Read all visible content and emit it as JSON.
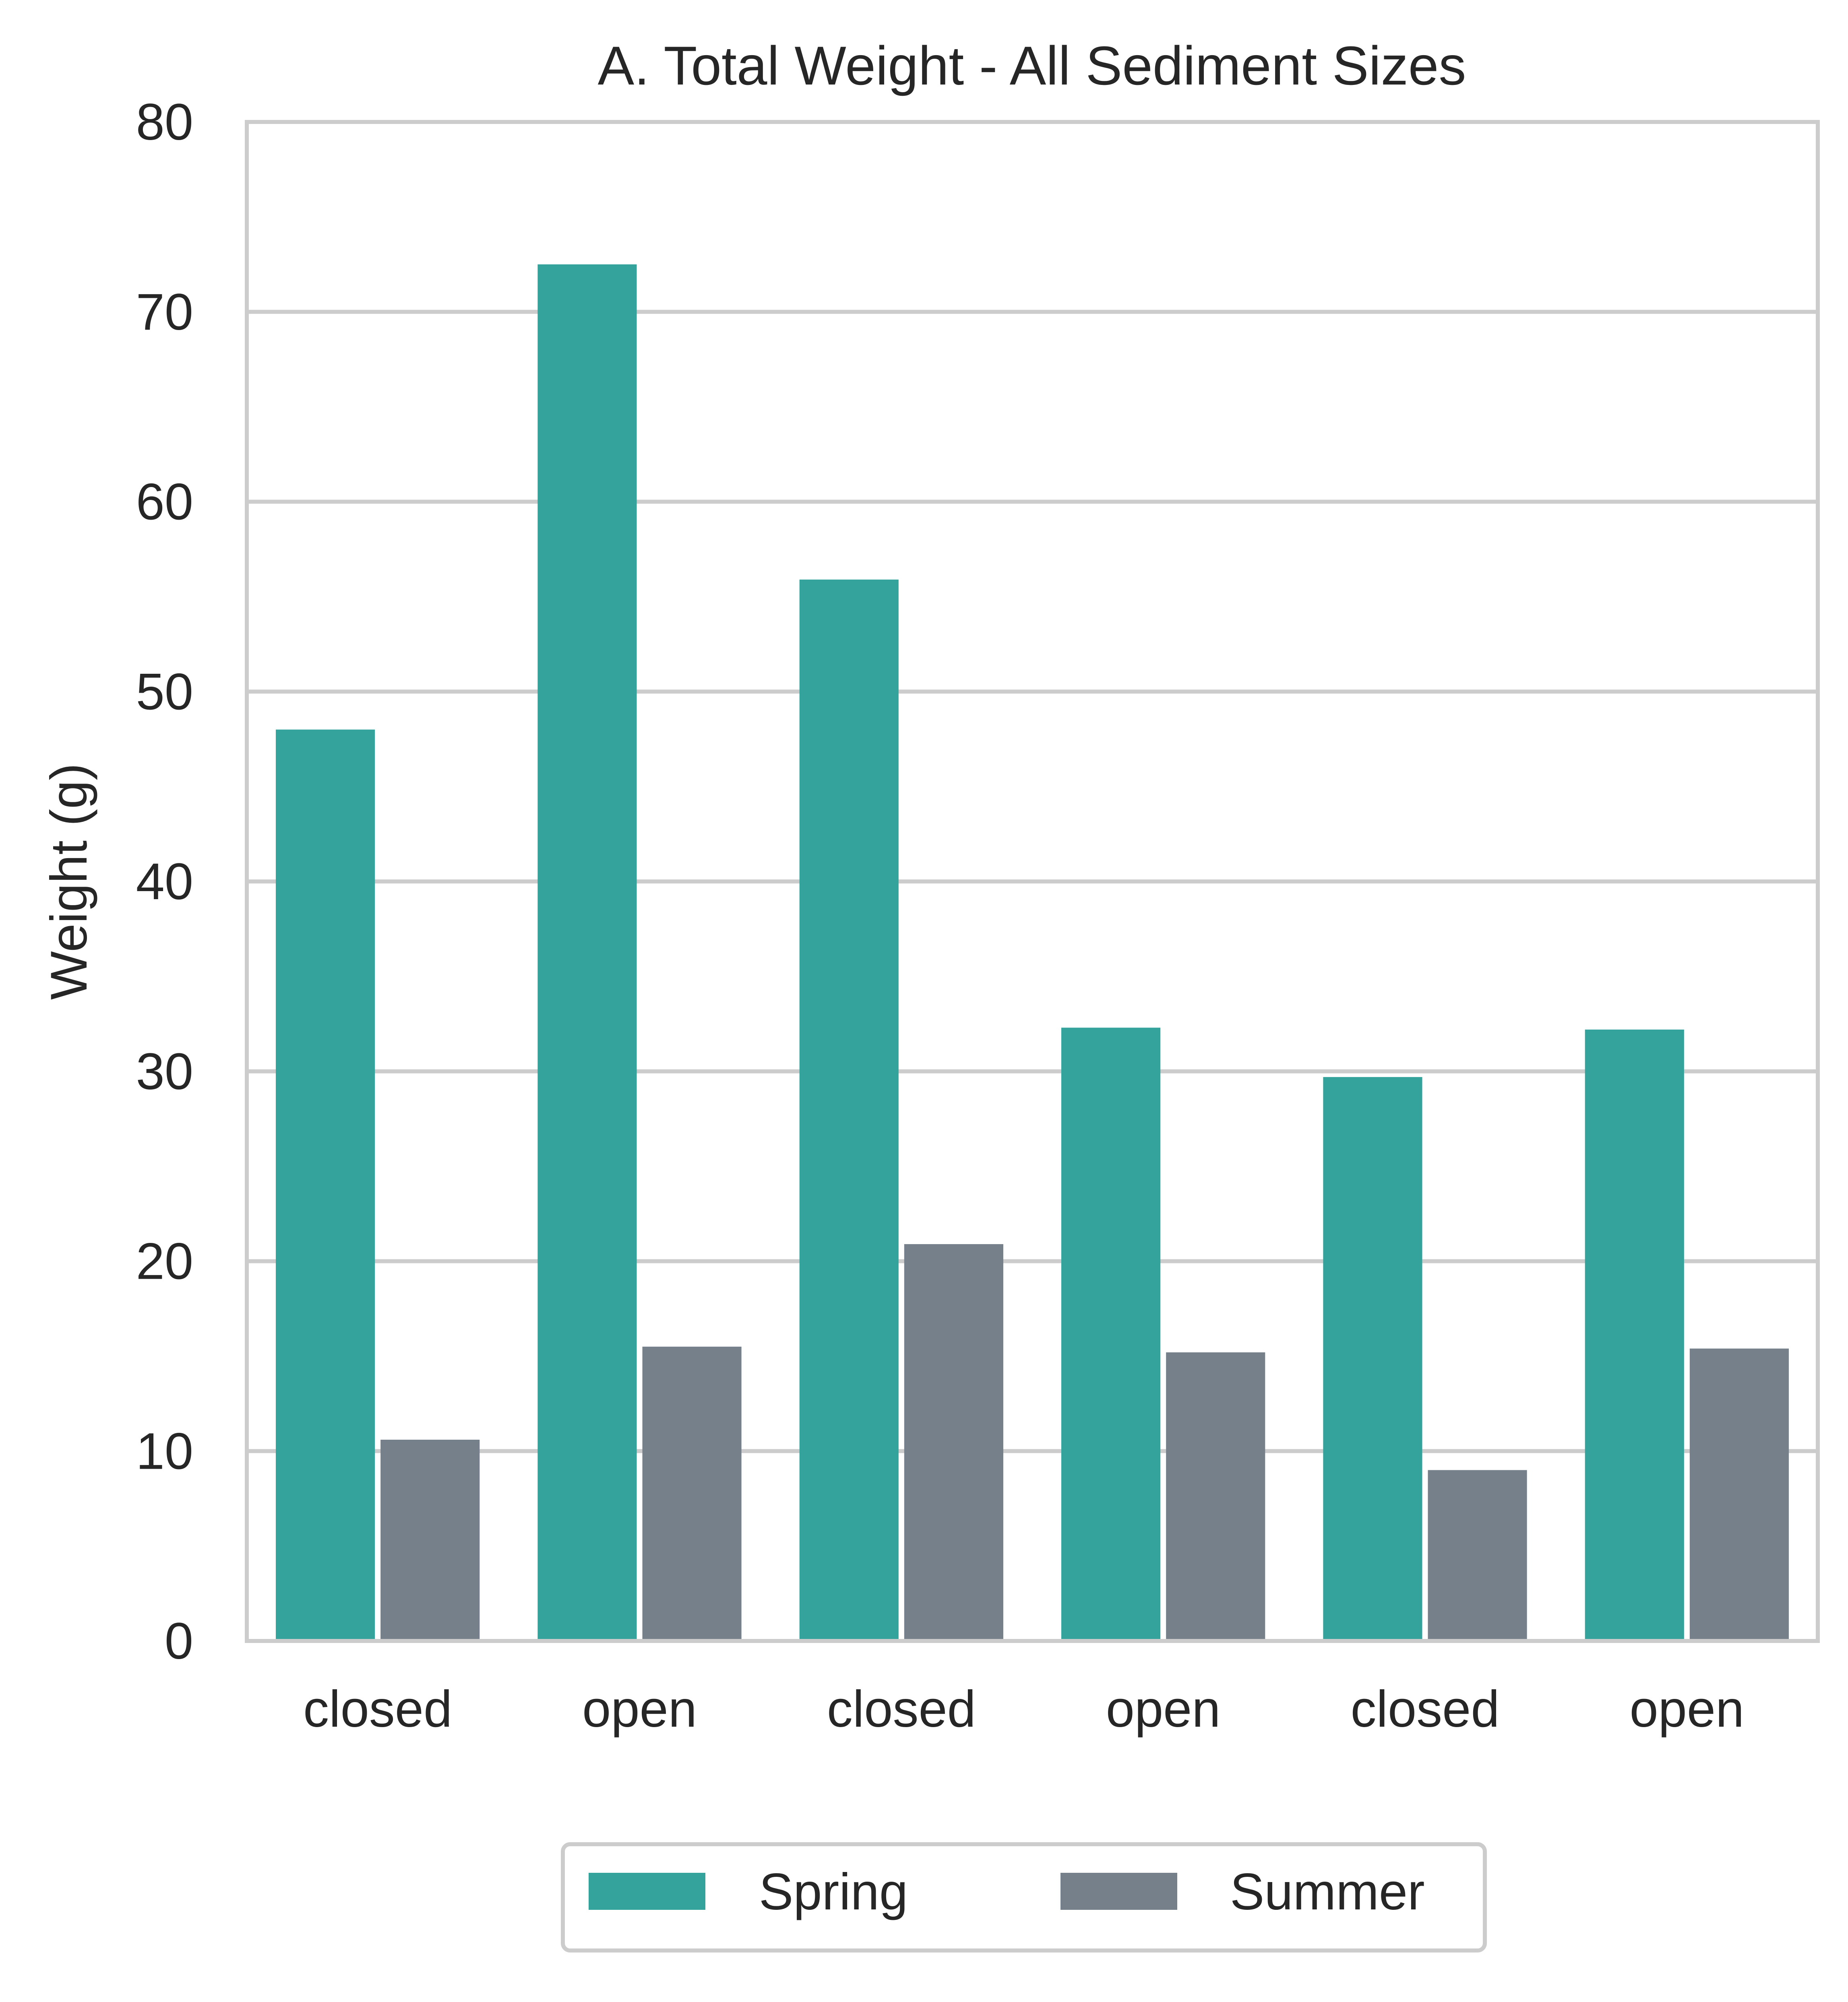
{
  "chart_data": {
    "type": "bar",
    "title": "A. Total Weight - All Sediment Sizes",
    "xlabel": "",
    "ylabel": "Weight (g)",
    "ylim": [
      0,
      80
    ],
    "yticks": [
      "0",
      "10",
      "20",
      "30",
      "40",
      "50",
      "60",
      "70",
      "80"
    ],
    "categories": [
      "closed",
      "open",
      "closed",
      "open",
      "closed",
      "open"
    ],
    "series": [
      {
        "name": "Spring",
        "color": "#33a39b",
        "values": [
          48.0,
          72.5,
          55.9,
          32.3,
          29.7,
          32.2
        ]
      },
      {
        "name": "Summer",
        "color": "#75808b",
        "values": [
          10.6,
          15.5,
          20.9,
          15.2,
          9.0,
          15.4
        ]
      }
    ],
    "grid": "horizontal",
    "legend_position": "bottom-center"
  }
}
